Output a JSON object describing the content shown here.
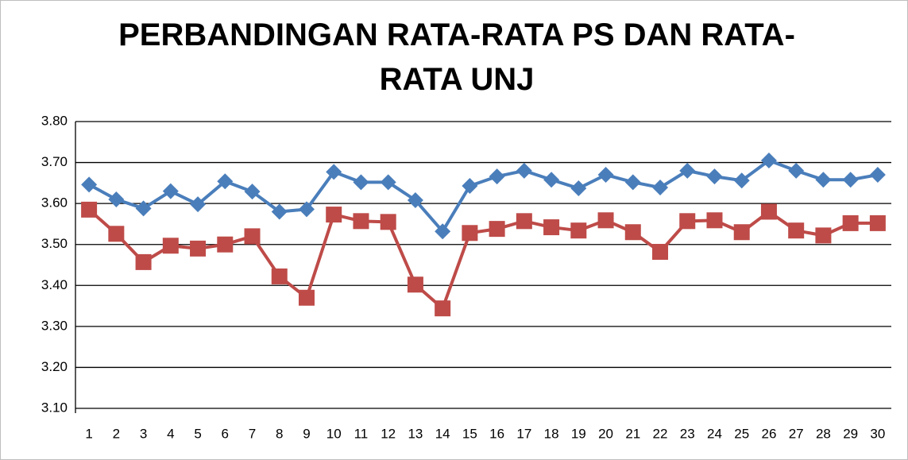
{
  "chart_data": {
    "type": "line",
    "title": "PERBANDINGAN RATA-RATA PS DAN RATA-RATA UNJ",
    "categories": [
      1,
      2,
      3,
      4,
      5,
      6,
      7,
      8,
      9,
      10,
      11,
      12,
      13,
      14,
      15,
      16,
      17,
      18,
      19,
      20,
      21,
      22,
      23,
      24,
      25,
      26,
      27,
      28,
      29,
      30
    ],
    "series": [
      {
        "color": "#4a7ebb",
        "marker": "diamond",
        "values": [
          3.646,
          3.61,
          3.588,
          3.63,
          3.598,
          3.654,
          3.629,
          3.58,
          3.586,
          3.677,
          3.652,
          3.652,
          3.608,
          3.532,
          3.643,
          3.666,
          3.68,
          3.658,
          3.637,
          3.67,
          3.652,
          3.639,
          3.68,
          3.666,
          3.656,
          3.705,
          3.68,
          3.658,
          3.658,
          3.67
        ]
      },
      {
        "color": "#be4b48",
        "marker": "square",
        "values": [
          3.585,
          3.526,
          3.457,
          3.497,
          3.49,
          3.5,
          3.52,
          3.422,
          3.37,
          3.573,
          3.557,
          3.555,
          3.402,
          3.344,
          3.528,
          3.538,
          3.557,
          3.542,
          3.534,
          3.559,
          3.53,
          3.482,
          3.557,
          3.559,
          3.53,
          3.58,
          3.534,
          3.522,
          3.552,
          3.552
        ]
      }
    ],
    "ylim": [
      3.1,
      3.8
    ],
    "yticks": [
      {
        "value": 3.1,
        "label": "3.10"
      },
      {
        "value": 3.2,
        "label": "3.20"
      },
      {
        "value": 3.3,
        "label": "3.30"
      },
      {
        "value": 3.4,
        "label": "3.40"
      },
      {
        "value": 3.5,
        "label": "3.50"
      },
      {
        "value": 3.6,
        "label": "3.60"
      },
      {
        "value": 3.7,
        "label": "3.70"
      },
      {
        "value": 3.8,
        "label": "3.80"
      }
    ],
    "grid": true
  }
}
